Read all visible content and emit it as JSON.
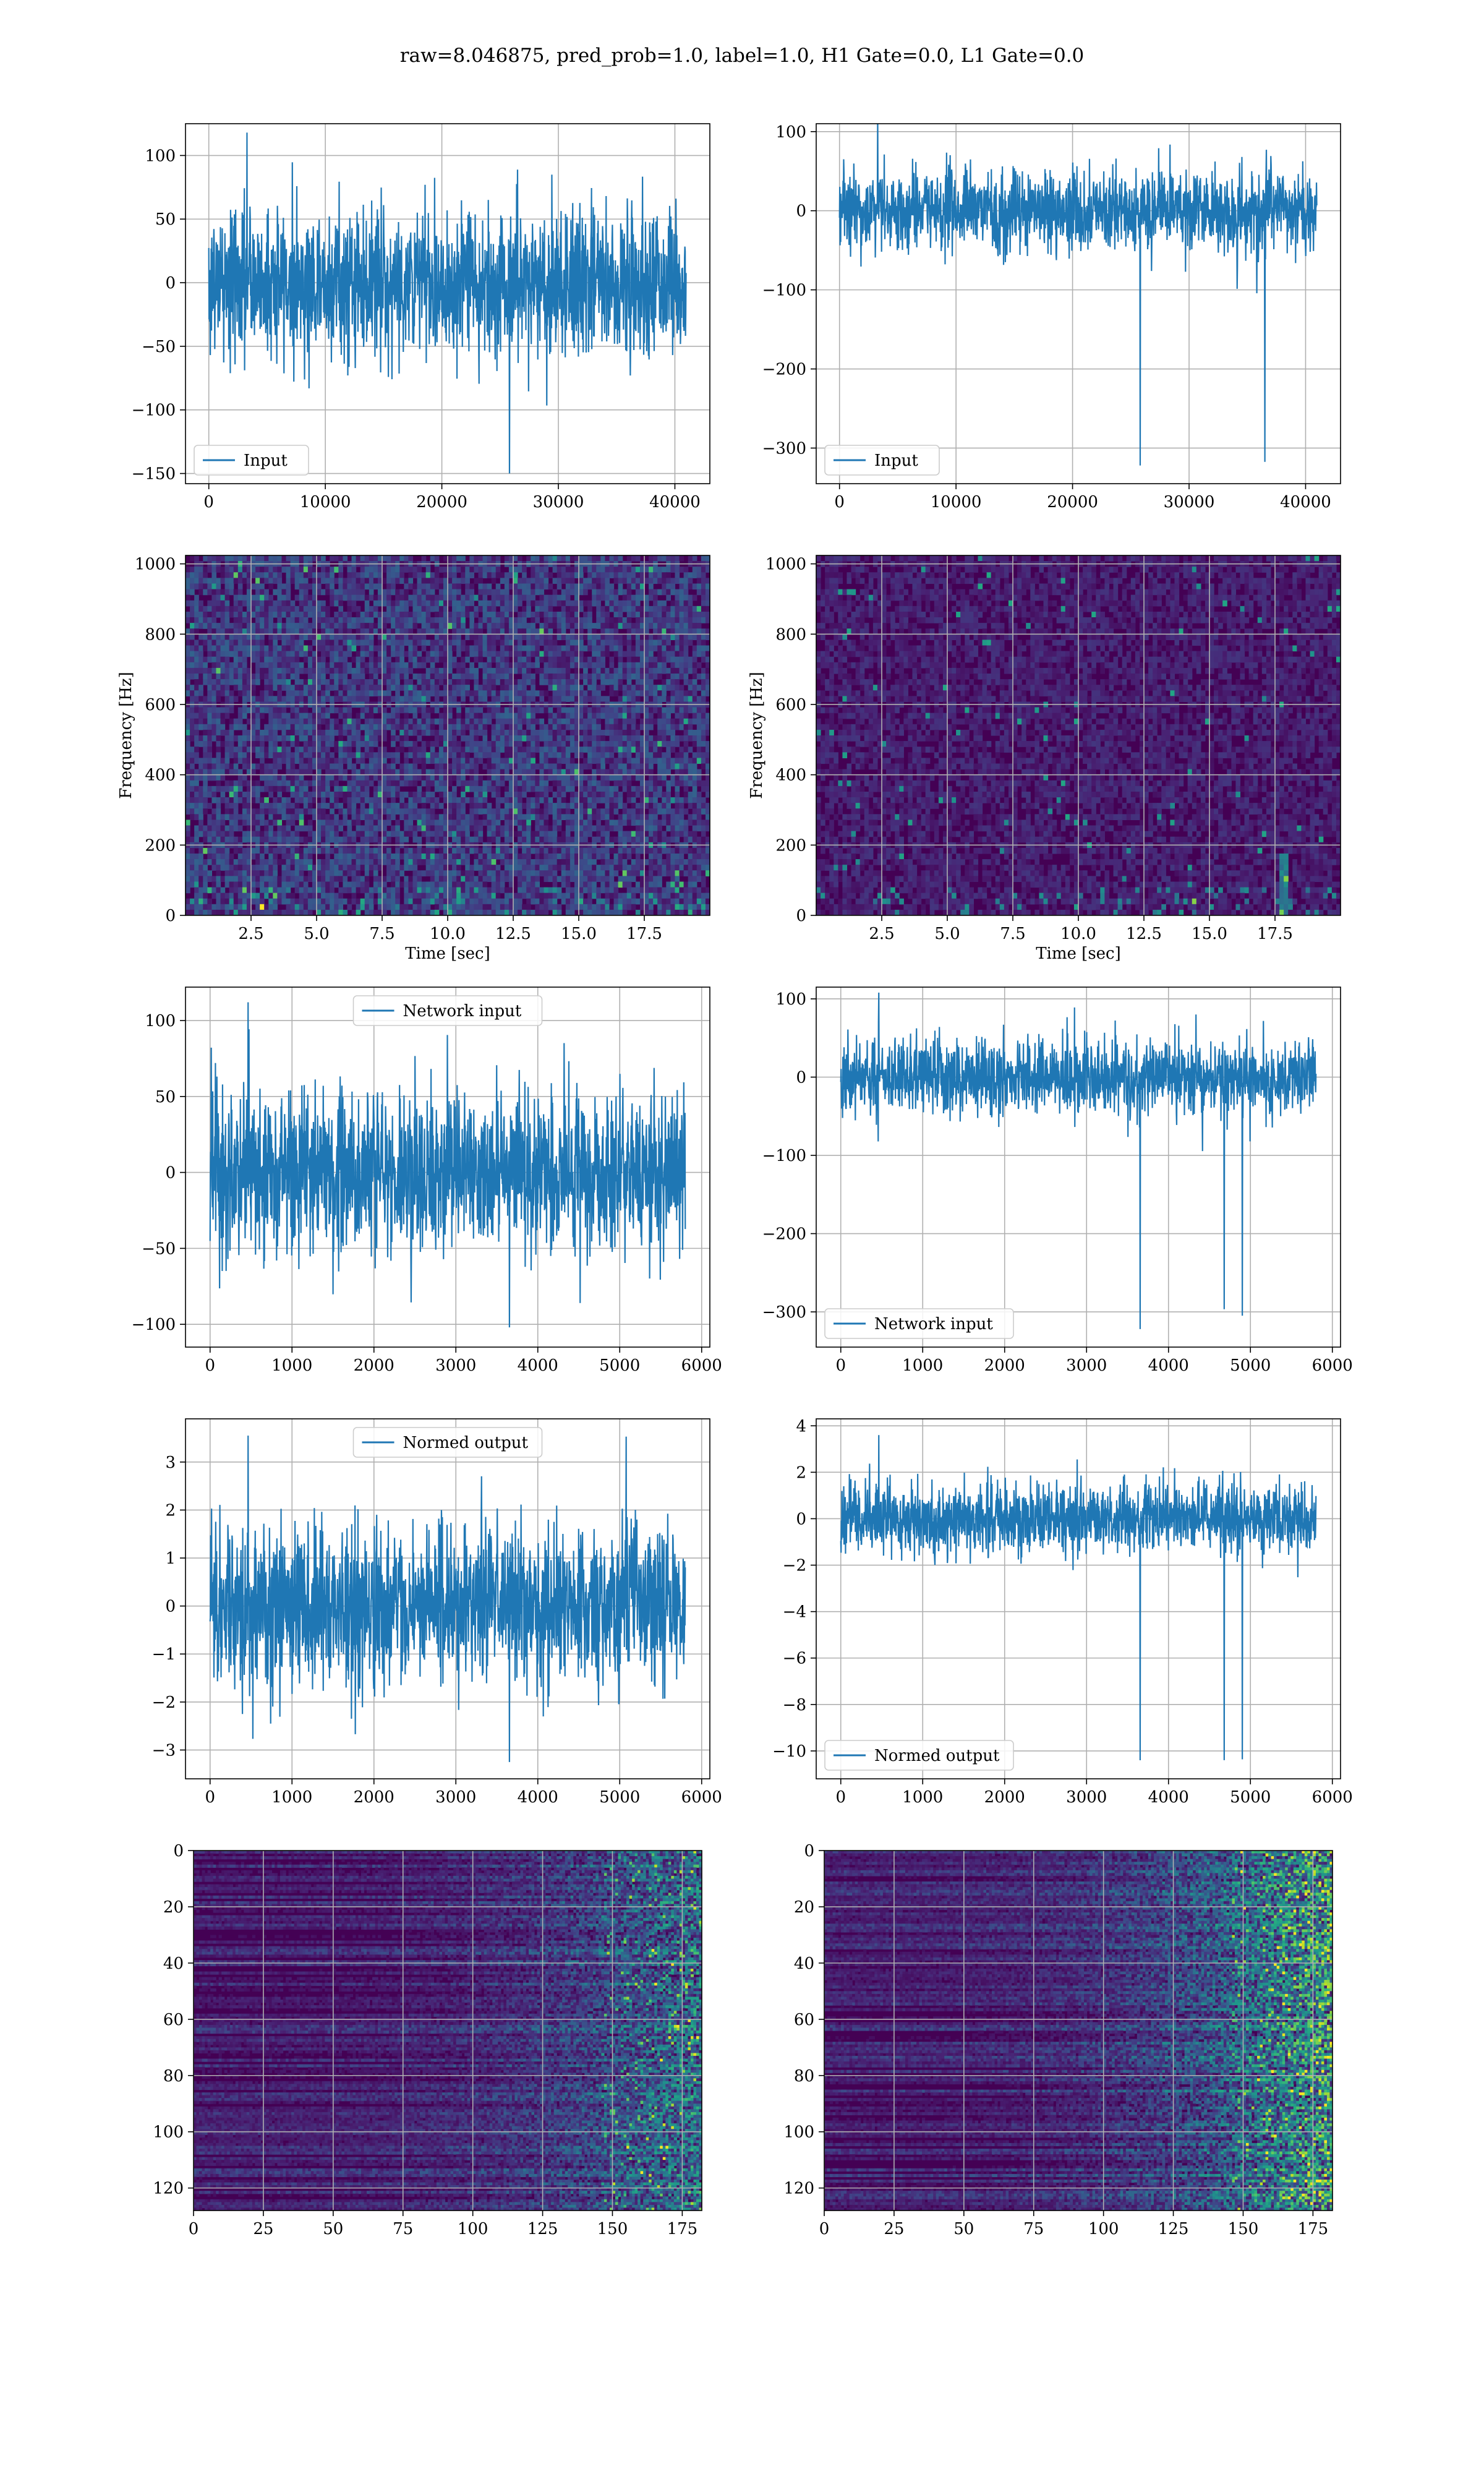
{
  "suptitle": "raw=8.046875, pred_prob=1.0, label=1.0, H1 Gate=0.0, L1 Gate=0.0",
  "colors": {
    "line": "#1f77b4",
    "viridis_dark": "#440154",
    "grid": "#b0b0b0"
  },
  "chart_data": [
    {
      "id": "input-h1",
      "type": "line",
      "legend": "Input",
      "legend_position": "lower-left",
      "xlabel": "",
      "ylabel": "",
      "xlim": [
        -2000,
        43000
      ],
      "ylim": [
        -158,
        125
      ],
      "xticks": [
        0,
        10000,
        20000,
        30000,
        40000
      ],
      "yticks": [
        -150,
        -100,
        -50,
        0,
        50,
        100
      ],
      "grid": true,
      "series": [
        {
          "samples": 40960,
          "x_range": [
            0,
            40960
          ],
          "envelope": [
            -70,
            70
          ],
          "peak_max": 118,
          "peak_min": -150
        }
      ]
    },
    {
      "id": "input-l1",
      "type": "line",
      "legend": "Input",
      "legend_position": "lower-left",
      "xlabel": "",
      "ylabel": "",
      "xlim": [
        -2000,
        43000
      ],
      "ylim": [
        -345,
        110
      ],
      "xticks": [
        0,
        10000,
        20000,
        30000,
        40000
      ],
      "yticks": [
        -300,
        -200,
        -100,
        0,
        100
      ],
      "grid": true,
      "series": [
        {
          "samples": 40960,
          "x_range": [
            0,
            40960
          ],
          "envelope": [
            -60,
            60
          ],
          "peak_max": 122,
          "peak_min": -322,
          "glitch_x": 36500
        }
      ]
    },
    {
      "id": "spectrogram-h1",
      "type": "heatmap",
      "colormap": "viridis",
      "xlabel": "Time [sec]",
      "ylabel": "Frequency [Hz]",
      "xlim": [
        0,
        20
      ],
      "ylim": [
        0,
        1024
      ],
      "xticks": [
        2.5,
        5.0,
        7.5,
        10.0,
        12.5,
        15.0,
        17.5
      ],
      "yticks": [
        0,
        200,
        400,
        600,
        800,
        1000
      ],
      "grid": true
    },
    {
      "id": "spectrogram-l1",
      "type": "heatmap",
      "colormap": "viridis",
      "xlabel": "Time [sec]",
      "ylabel": "Frequency [Hz]",
      "xlim": [
        0,
        20
      ],
      "ylim": [
        0,
        1024
      ],
      "xticks": [
        2.5,
        5.0,
        7.5,
        10.0,
        12.5,
        15.0,
        17.5
      ],
      "yticks": [
        0,
        200,
        400,
        600,
        800,
        1000
      ],
      "grid": true
    },
    {
      "id": "network-input-h1",
      "type": "line",
      "legend": "Network input",
      "legend_position": "top-center",
      "xlabel": "",
      "ylabel": "",
      "xlim": [
        -300,
        6100
      ],
      "ylim": [
        -115,
        122
      ],
      "xticks": [
        0,
        1000,
        2000,
        3000,
        4000,
        5000,
        6000
      ],
      "yticks": [
        -100,
        -50,
        0,
        50,
        100
      ],
      "grid": true,
      "series": [
        {
          "samples": 5800,
          "x_range": [
            0,
            5800
          ],
          "envelope": [
            -62,
            62
          ],
          "peak_max": 112,
          "peak_min": -102
        }
      ]
    },
    {
      "id": "network-input-l1",
      "type": "line",
      "legend": "Network input",
      "legend_position": "lower-left",
      "xlabel": "",
      "ylabel": "",
      "xlim": [
        -300,
        6100
      ],
      "ylim": [
        -345,
        115
      ],
      "xticks": [
        0,
        1000,
        2000,
        3000,
        4000,
        5000,
        6000
      ],
      "yticks": [
        -300,
        -200,
        -100,
        0,
        100
      ],
      "grid": true,
      "series": [
        {
          "samples": 5800,
          "x_range": [
            0,
            5800
          ],
          "envelope": [
            -55,
            55
          ],
          "peak_max": 108,
          "peak_min": -322,
          "glitch_x": [
            4680,
            4900
          ]
        }
      ]
    },
    {
      "id": "normed-output-h1",
      "type": "line",
      "legend": "Normed output",
      "legend_position": "top-center",
      "xlabel": "",
      "ylabel": "",
      "xlim": [
        -300,
        6100
      ],
      "ylim": [
        -3.6,
        3.9
      ],
      "xticks": [
        0,
        1000,
        2000,
        3000,
        4000,
        5000,
        6000
      ],
      "yticks": [
        -3,
        -2,
        -1,
        0,
        1,
        2,
        3
      ],
      "grid": true,
      "series": [
        {
          "samples": 5800,
          "x_range": [
            0,
            5800
          ],
          "envelope": [
            -2.0,
            2.0
          ],
          "peak_max": 3.55,
          "peak_min": -3.25
        }
      ]
    },
    {
      "id": "normed-output-l1",
      "type": "line",
      "legend": "Normed output",
      "legend_position": "lower-left",
      "xlabel": "",
      "ylabel": "",
      "xlim": [
        -300,
        6100
      ],
      "ylim": [
        -11.2,
        4.3
      ],
      "xticks": [
        0,
        1000,
        2000,
        3000,
        4000,
        5000,
        6000
      ],
      "yticks": [
        -10,
        -8,
        -6,
        -4,
        -2,
        0,
        2,
        4
      ],
      "grid": true,
      "series": [
        {
          "samples": 5800,
          "x_range": [
            0,
            5800
          ],
          "envelope": [
            -1.7,
            1.7
          ],
          "peak_max": 3.6,
          "peak_min": -10.4,
          "glitch_x": [
            4680,
            4900
          ]
        }
      ]
    },
    {
      "id": "feature-map-h1",
      "type": "heatmap",
      "colormap": "viridis",
      "xlabel": "",
      "ylabel": "",
      "xlim": [
        0,
        182
      ],
      "ylim": [
        128,
        0
      ],
      "xticks": [
        0,
        25,
        50,
        75,
        100,
        125,
        150,
        175
      ],
      "yticks": [
        0,
        20,
        40,
        60,
        80,
        100,
        120
      ],
      "grid": true
    },
    {
      "id": "feature-map-l1",
      "type": "heatmap",
      "colormap": "viridis",
      "xlabel": "",
      "ylabel": "",
      "xlim": [
        0,
        182
      ],
      "ylim": [
        128,
        0
      ],
      "xticks": [
        0,
        25,
        50,
        75,
        100,
        125,
        150,
        175
      ],
      "yticks": [
        0,
        20,
        40,
        60,
        80,
        100,
        120
      ],
      "grid": true
    }
  ]
}
